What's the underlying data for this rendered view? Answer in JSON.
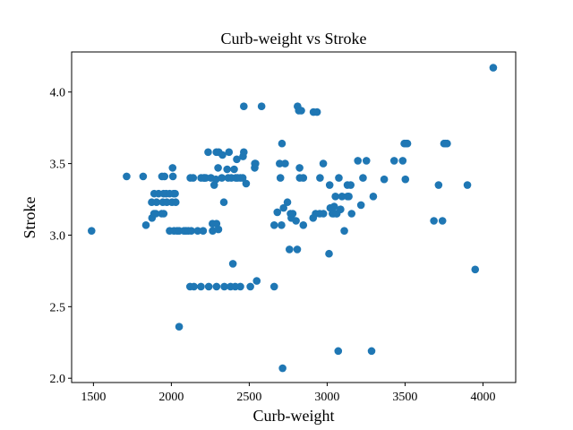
{
  "chart_data": {
    "type": "scatter",
    "title": "Curb-weight vs Stroke",
    "xlabel": "Curb-weight",
    "ylabel": "Stroke",
    "xlim": [
      1360,
      4210
    ],
    "ylim": [
      1.97,
      4.28
    ],
    "xticks": [
      1500,
      2000,
      2500,
      3000,
      3500,
      4000
    ],
    "yticks": [
      2.0,
      2.5,
      3.0,
      3.5,
      4.0
    ],
    "xtick_labels": [
      "1500",
      "2000",
      "2500",
      "3000",
      "3500",
      "4000"
    ],
    "ytick_labels": [
      "2.0",
      "2.5",
      "3.0",
      "3.5",
      "4.0"
    ],
    "grid": false,
    "marker_color": "#1f77b4",
    "series": [
      {
        "points": [
          [
            1488,
            3.03
          ],
          [
            1713,
            3.41
          ],
          [
            1819,
            3.41
          ],
          [
            1837,
            3.07
          ],
          [
            1874,
            3.23
          ],
          [
            1876,
            3.12
          ],
          [
            1889,
            3.15
          ],
          [
            1890,
            3.29
          ],
          [
            1900,
            3.15
          ],
          [
            1905,
            3.23
          ],
          [
            1918,
            3.29
          ],
          [
            1938,
            3.15
          ],
          [
            1940,
            3.41
          ],
          [
            1945,
            3.23
          ],
          [
            1950,
            3.29
          ],
          [
            1951,
            3.15
          ],
          [
            1956,
            3.41
          ],
          [
            1967,
            3.29
          ],
          [
            1971,
            3.23
          ],
          [
            1989,
            3.03
          ],
          [
            1989,
            3.29
          ],
          [
            2004,
            3.23
          ],
          [
            2008,
            3.47
          ],
          [
            2010,
            3.41
          ],
          [
            2015,
            3.29
          ],
          [
            2017,
            3.03
          ],
          [
            2024,
            3.29
          ],
          [
            2028,
            3.23
          ],
          [
            2037,
            3.03
          ],
          [
            2050,
            2.36
          ],
          [
            2050,
            3.03
          ],
          [
            2081,
            3.03
          ],
          [
            2094,
            3.03
          ],
          [
            2109,
            3.03
          ],
          [
            2120,
            2.64
          ],
          [
            2122,
            3.4
          ],
          [
            2128,
            3.03
          ],
          [
            2140,
            3.4
          ],
          [
            2145,
            2.64
          ],
          [
            2169,
            3.03
          ],
          [
            2190,
            2.64
          ],
          [
            2191,
            3.4
          ],
          [
            2204,
            3.03
          ],
          [
            2209,
            3.4
          ],
          [
            2212,
            3.4
          ],
          [
            2221,
            3.4
          ],
          [
            2236,
            3.58
          ],
          [
            2240,
            2.64
          ],
          [
            2254,
            3.4
          ],
          [
            2264,
            3.08
          ],
          [
            2265,
            3.03
          ],
          [
            2275,
            3.35
          ],
          [
            2286,
            3.39
          ],
          [
            2289,
            3.58
          ],
          [
            2290,
            2.64
          ],
          [
            2290,
            3.08
          ],
          [
            2300,
            3.47
          ],
          [
            2302,
            3.04
          ],
          [
            2304,
            3.58
          ],
          [
            2324,
            3.4
          ],
          [
            2328,
            3.56
          ],
          [
            2337,
            3.23
          ],
          [
            2340,
            2.64
          ],
          [
            2358,
            3.46
          ],
          [
            2365,
            3.4
          ],
          [
            2370,
            3.58
          ],
          [
            2380,
            2.64
          ],
          [
            2385,
            3.4
          ],
          [
            2395,
            2.8
          ],
          [
            2403,
            3.46
          ],
          [
            2410,
            2.64
          ],
          [
            2414,
            3.4
          ],
          [
            2420,
            3.53
          ],
          [
            2425,
            3.4
          ],
          [
            2443,
            3.4
          ],
          [
            2443,
            2.64
          ],
          [
            2458,
            3.4
          ],
          [
            2460,
            3.55
          ],
          [
            2465,
            3.9
          ],
          [
            2465,
            3.58
          ],
          [
            2480,
            3.36
          ],
          [
            2507,
            2.64
          ],
          [
            2535,
            3.47
          ],
          [
            2536,
            3.5
          ],
          [
            2540,
            3.5
          ],
          [
            2548,
            2.68
          ],
          [
            2579,
            3.9
          ],
          [
            2660,
            3.07
          ],
          [
            2660,
            2.64
          ],
          [
            2680,
            3.16
          ],
          [
            2695,
            3.5
          ],
          [
            2700,
            3.4
          ],
          [
            2707,
            3.07
          ],
          [
            2710,
            3.64
          ],
          [
            2714,
            2.07
          ],
          [
            2720,
            3.19
          ],
          [
            2730,
            3.5
          ],
          [
            2745,
            3.23
          ],
          [
            2758,
            2.9
          ],
          [
            2765,
            3.15
          ],
          [
            2770,
            3.12
          ],
          [
            2779,
            3.15
          ],
          [
            2800,
            3.1
          ],
          [
            2808,
            2.9
          ],
          [
            2810,
            3.9
          ],
          [
            2818,
            3.87
          ],
          [
            2823,
            3.47
          ],
          [
            2824,
            3.4
          ],
          [
            2834,
            3.87
          ],
          [
            2847,
            3.4
          ],
          [
            2847,
            3.07
          ],
          [
            2910,
            3.12
          ],
          [
            2912,
            3.86
          ],
          [
            2926,
            3.15
          ],
          [
            2935,
            3.86
          ],
          [
            2952,
            3.15
          ],
          [
            2954,
            3.4
          ],
          [
            2975,
            3.5
          ],
          [
            2976,
            3.15
          ],
          [
            3012,
            2.87
          ],
          [
            3016,
            3.35
          ],
          [
            3020,
            3.19
          ],
          [
            3034,
            3.15
          ],
          [
            3042,
            3.15
          ],
          [
            3045,
            3.2
          ],
          [
            3053,
            3.27
          ],
          [
            3060,
            3.15
          ],
          [
            3062,
            3.15
          ],
          [
            3071,
            2.19
          ],
          [
            3075,
            3.4
          ],
          [
            3086,
            3.18
          ],
          [
            3095,
            3.27
          ],
          [
            3110,
            3.03
          ],
          [
            3130,
            3.35
          ],
          [
            3131,
            3.27
          ],
          [
            3139,
            3.27
          ],
          [
            3151,
            3.35
          ],
          [
            3157,
            3.15
          ],
          [
            3197,
            3.52
          ],
          [
            3217,
            3.21
          ],
          [
            3230,
            3.4
          ],
          [
            3252,
            3.52
          ],
          [
            3285,
            2.19
          ],
          [
            3296,
            3.27
          ],
          [
            3366,
            3.39
          ],
          [
            3430,
            3.52
          ],
          [
            3485,
            3.52
          ],
          [
            3495,
            3.64
          ],
          [
            3502,
            3.39
          ],
          [
            3505,
            3.64
          ],
          [
            3515,
            3.64
          ],
          [
            3685,
            3.1
          ],
          [
            3715,
            3.35
          ],
          [
            3740,
            3.1
          ],
          [
            3750,
            3.64
          ],
          [
            3760,
            3.64
          ],
          [
            3770,
            3.64
          ],
          [
            3900,
            3.35
          ],
          [
            3950,
            2.76
          ],
          [
            4066,
            4.17
          ]
        ]
      }
    ]
  }
}
